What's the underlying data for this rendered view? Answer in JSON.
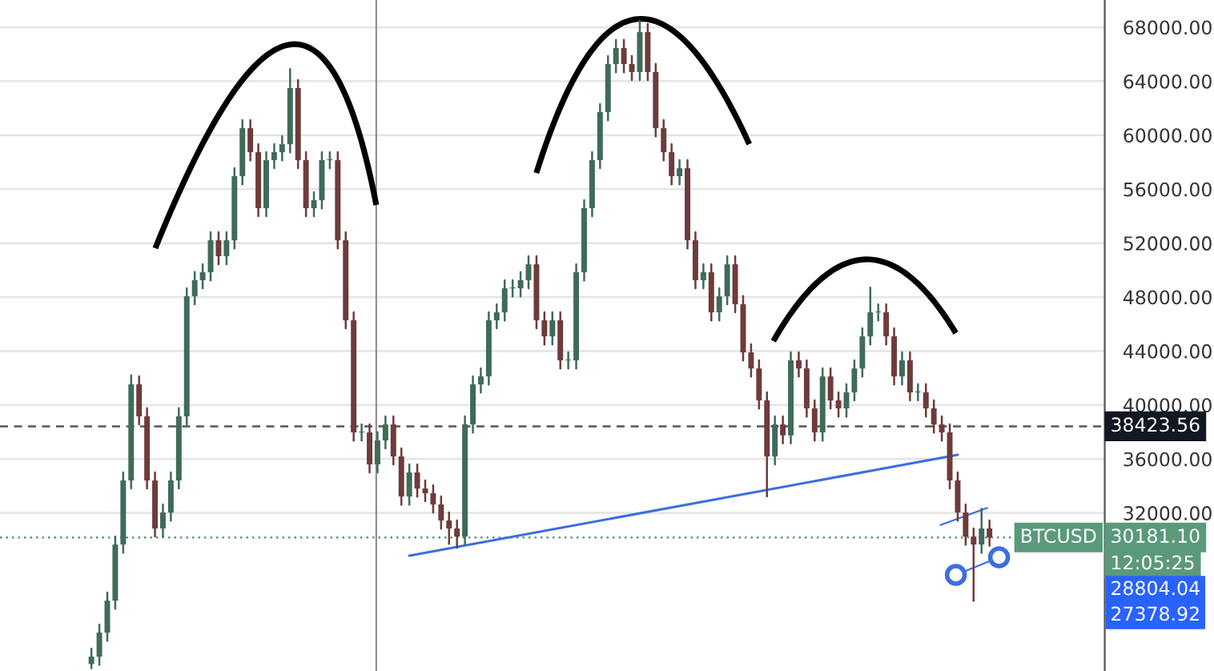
{
  "chart_data": {
    "type": "candlestick",
    "categories": [
      null,
      null,
      null,
      null,
      null,
      null,
      null,
      null,
      null,
      null,
      null,
      null,
      null,
      null,
      null,
      null,
      null,
      null,
      null,
      null,
      null,
      null,
      null,
      null,
      null,
      null,
      null,
      null,
      null,
      null,
      null,
      null,
      null,
      null,
      null,
      null,
      null,
      null,
      null,
      null,
      null,
      null,
      null,
      null,
      null,
      null,
      null,
      null,
      null,
      null,
      null,
      null,
      null,
      null,
      null,
      null,
      null,
      null,
      null,
      null,
      null,
      null,
      null,
      null,
      null,
      null,
      null,
      null,
      null,
      null,
      null,
      null,
      null,
      null,
      null,
      null,
      null,
      null,
      null,
      null,
      null,
      null,
      null,
      null,
      null,
      null,
      null,
      null,
      null,
      null,
      null,
      null,
      null,
      null,
      null,
      null,
      null,
      null,
      null,
      null,
      null,
      null,
      null,
      null,
      null,
      null,
      null,
      null,
      null,
      null,
      null,
      null,
      null,
      null,
      null,
      null,
      null,
      null,
      null,
      null,
      null,
      null,
      null,
      null,
      null,
      null,
      null,
      null,
      null,
      null,
      null,
      null,
      null,
      null,
      null,
      null,
      null,
      null,
      null
    ],
    "ohlc": [
      null,
      null,
      null,
      null,
      null,
      null,
      null,
      null,
      null,
      null,
      null,
      [
        20800,
        21950,
        20500,
        21350
      ],
      [
        21350,
        23730,
        20750,
        23130
      ],
      [
        23130,
        26100,
        22530,
        25500
      ],
      [
        25500,
        30260,
        24900,
        29660
      ],
      [
        29660,
        35010,
        29060,
        34410
      ],
      [
        34410,
        42200,
        33810,
        41530
      ],
      [
        41530,
        42130,
        38560,
        39160
      ],
      [
        39160,
        39760,
        33810,
        34410
      ],
      [
        34410,
        35010,
        30250,
        30850
      ],
      [
        30850,
        32630,
        30250,
        32030
      ],
      [
        32030,
        35010,
        31430,
        34410
      ],
      [
        34410,
        39760,
        33810,
        39160
      ],
      [
        39160,
        48660,
        38560,
        48060
      ],
      [
        48060,
        49850,
        47460,
        49250
      ],
      [
        49250,
        50440,
        48650,
        49840
      ],
      [
        49840,
        52810,
        49240,
        52210
      ],
      [
        52210,
        52810,
        50430,
        51030
      ],
      [
        51030,
        52810,
        50430,
        52210
      ],
      [
        52210,
        57560,
        51610,
        56960
      ],
      [
        56960,
        61120,
        56360,
        60520
      ],
      [
        60520,
        61120,
        58140,
        58740
      ],
      [
        58740,
        59340,
        53990,
        54590
      ],
      [
        54590,
        58750,
        53990,
        58150
      ],
      [
        58150,
        59340,
        57550,
        58740
      ],
      [
        58740,
        59930,
        58140,
        59330
      ],
      [
        59330,
        64900,
        58730,
        63490
      ],
      [
        63490,
        64090,
        57550,
        58150
      ],
      [
        58150,
        58750,
        53990,
        54590
      ],
      [
        54590,
        55780,
        53990,
        55180
      ],
      [
        55180,
        58750,
        54580,
        58150
      ],
      [
        58150,
        58750,
        57550,
        58150
      ],
      [
        58150,
        58750,
        51610,
        52210
      ],
      [
        52210,
        52810,
        45680,
        46280
      ],
      [
        46280,
        46880,
        37370,
        37970
      ],
      [
        37970,
        38570,
        37370,
        37970
      ],
      [
        37970,
        38570,
        35000,
        35600
      ],
      [
        35600,
        37980,
        35000,
        37380
      ],
      [
        37380,
        39160,
        36780,
        38560
      ],
      [
        38560,
        39160,
        35590,
        36190
      ],
      [
        36190,
        36790,
        32620,
        33220
      ],
      [
        33220,
        35600,
        32620,
        35000
      ],
      [
        35000,
        35600,
        33210,
        33810
      ],
      [
        33810,
        34410,
        32860,
        33460
      ],
      [
        33460,
        34060,
        32030,
        32630
      ],
      [
        32630,
        33230,
        30840,
        31440
      ],
      [
        31440,
        32040,
        29700,
        30850
      ],
      [
        30850,
        31450,
        29420,
        30250
      ],
      [
        30250,
        39160,
        29650,
        38560
      ],
      [
        38560,
        42130,
        37960,
        41530
      ],
      [
        41530,
        42720,
        40930,
        42120
      ],
      [
        42120,
        46880,
        41520,
        46280
      ],
      [
        46280,
        47470,
        45680,
        46870
      ],
      [
        46870,
        49250,
        46270,
        48650
      ],
      [
        48650,
        49250,
        48050,
        48650
      ],
      [
        48650,
        49850,
        48050,
        49250
      ],
      [
        49250,
        51030,
        48650,
        50430
      ],
      [
        50430,
        51030,
        45680,
        46280
      ],
      [
        46280,
        46880,
        44490,
        45090
      ],
      [
        45090,
        46880,
        44490,
        46280
      ],
      [
        46280,
        46880,
        42710,
        43310
      ],
      [
        43310,
        43910,
        42710,
        43310
      ],
      [
        43310,
        50440,
        42710,
        49840
      ],
      [
        49840,
        55190,
        49240,
        54590
      ],
      [
        54590,
        58750,
        53990,
        58150
      ],
      [
        58150,
        62310,
        57550,
        61710
      ],
      [
        61710,
        65870,
        61110,
        65270
      ],
      [
        65270,
        67060,
        64670,
        66460
      ],
      [
        66460,
        67060,
        64670,
        65270
      ],
      [
        65270,
        65870,
        64080,
        64680
      ],
      [
        64680,
        68470,
        64080,
        67640
      ],
      [
        67640,
        68240,
        64080,
        64680
      ],
      [
        64680,
        65280,
        59920,
        60520
      ],
      [
        60520,
        61120,
        58140,
        58740
      ],
      [
        58740,
        59340,
        56360,
        56960
      ],
      [
        56960,
        58150,
        56360,
        57550
      ],
      [
        57550,
        58150,
        51610,
        52210
      ],
      [
        52210,
        52810,
        48650,
        49250
      ],
      [
        49250,
        50440,
        48650,
        49840
      ],
      [
        49840,
        50440,
        46270,
        46870
      ],
      [
        46870,
        48660,
        46270,
        48060
      ],
      [
        48060,
        51030,
        47460,
        50430
      ],
      [
        50430,
        51030,
        46870,
        47470
      ],
      [
        47470,
        48070,
        43300,
        43900
      ],
      [
        43900,
        44500,
        42110,
        42710
      ],
      [
        42710,
        43310,
        39740,
        40340
      ],
      [
        40340,
        40940,
        33220,
        36190
      ],
      [
        36190,
        39160,
        35590,
        38560
      ],
      [
        38560,
        39160,
        37150,
        37750
      ],
      [
        37750,
        43910,
        37150,
        43310
      ],
      [
        43310,
        43910,
        42110,
        42710
      ],
      [
        42710,
        43310,
        39150,
        39750
      ],
      [
        39750,
        40350,
        37370,
        37970
      ],
      [
        37970,
        42720,
        37370,
        42120
      ],
      [
        42120,
        42720,
        39740,
        40340
      ],
      [
        40340,
        40940,
        39150,
        39750
      ],
      [
        39750,
        41540,
        39150,
        40940
      ],
      [
        40940,
        43310,
        40340,
        42710
      ],
      [
        42710,
        45690,
        42110,
        45090
      ],
      [
        45090,
        48700,
        44490,
        46870
      ],
      [
        46870,
        47470,
        46270,
        46870
      ],
      [
        46870,
        47470,
        44490,
        45090
      ],
      [
        45090,
        45690,
        41520,
        42120
      ],
      [
        42120,
        43910,
        41520,
        43310
      ],
      [
        43310,
        43910,
        40340,
        40940
      ],
      [
        40940,
        41540,
        40340,
        40940
      ],
      [
        40940,
        41540,
        39150,
        39750
      ],
      [
        39750,
        40350,
        37960,
        38560
      ],
      [
        38560,
        39160,
        37370,
        37970
      ],
      [
        37970,
        38570,
        33810,
        34410
      ],
      [
        34410,
        35010,
        31430,
        32030
      ],
      [
        32030,
        32630,
        29650,
        30250
      ],
      [
        30250,
        30850,
        25500,
        29660
      ],
      [
        29660,
        32300,
        29060,
        30850
      ],
      [
        30850,
        31450,
        29580,
        30181.1
      ],
      null,
      null,
      null,
      null,
      null,
      null,
      null,
      null,
      null,
      null,
      null,
      null,
      null,
      null
    ],
    "colors": [
      null,
      null,
      null,
      null,
      null,
      null,
      null,
      null,
      null,
      null,
      null,
      "#3f6b58",
      "#3f6b58",
      "#3f6b58",
      "#3f6b58",
      "#3f6b58",
      "#3f6b58",
      "#6e3b3b",
      "#6e3b3b",
      "#6e3b3b",
      "#3f6b58",
      "#3f6b58",
      "#3f6b58",
      "#3f6b58",
      "#3f6b58",
      "#3f6b58",
      "#3f6b58",
      "#6e3b3b",
      "#3f6b58",
      "#3f6b58",
      "#3f6b58",
      "#6e3b3b",
      "#6e3b3b",
      "#3f6b58",
      "#3f6b58",
      "#3f6b58",
      "#3f6b58",
      "#6e3b3b",
      "#6e3b3b",
      "#3f6b58",
      "#3f6b58",
      "#3f6b58",
      "#6e3b3b",
      "#6e3b3b",
      "#6e3b3b",
      "#3f6b58",
      "#6e3b3b",
      "#3f6b58",
      "#3f6b58",
      "#6e3b3b",
      "#6e3b3b",
      "#3f6b58",
      "#6e3b3b",
      "#6e3b3b",
      "#6e3b3b",
      "#6e3b3b",
      "#6e3b3b",
      "#6e3b3b",
      "#3f6b58",
      "#3f6b58",
      "#3f6b58",
      "#3f6b58",
      "#3f6b58",
      "#3f6b58",
      "#3f6b58",
      "#3f6b58",
      "#3f6b58",
      "#6e3b3b",
      "#6e3b3b",
      "#3f6b58",
      "#6e3b3b",
      "#3f6b58",
      "#3f6b58",
      "#3f6b58",
      "#3f6b58",
      "#3f6b58",
      "#3f6b58",
      "#3f6b58",
      "#6e3b3b",
      "#6e3b3b",
      "#3f6b58",
      "#6e3b3b",
      "#6e3b3b",
      "#6e3b3b",
      "#6e3b3b",
      "#3f6b58",
      "#6e3b3b",
      "#6e3b3b",
      "#3f6b58",
      "#6e3b3b",
      "#3f6b58",
      "#3f6b58",
      "#6e3b3b",
      "#6e3b3b",
      "#6e3b3b",
      "#6e3b3b",
      "#6e3b3b",
      "#3f6b58",
      "#6e3b3b",
      "#3f6b58",
      "#6e3b3b",
      "#6e3b3b",
      "#6e3b3b",
      "#3f6b58",
      "#6e3b3b",
      "#6e3b3b",
      "#3f6b58",
      "#3f6b58",
      "#3f6b58",
      "#3f6b58",
      "#3f6b58",
      "#6e3b3b",
      "#6e3b3b",
      "#3f6b58",
      "#6e3b3b",
      "#3f6b58",
      "#6e3b3b",
      "#6e3b3b",
      "#6e3b3b",
      "#6e3b3b",
      "#6e3b3b",
      "#6e3b3b",
      "#6e3b3b",
      "#3f6b58",
      "#6e3b3b",
      null,
      null,
      null,
      null,
      null,
      null,
      null,
      null,
      null,
      null,
      null,
      null,
      null,
      null
    ],
    "series": [
      {
        "type": "line",
        "color": "#3d6ee0",
        "values": [
          null,
          null,
          null,
          null,
          null,
          null,
          null,
          null,
          null,
          null,
          null,
          null,
          null,
          null,
          null,
          null,
          null,
          null,
          null,
          null,
          null,
          null,
          null,
          null,
          null,
          null,
          null,
          null,
          null,
          null,
          null,
          null,
          null,
          null,
          null,
          null,
          null,
          null,
          null,
          null,
          null,
          null,
          null,
          null,
          null,
          null,
          null,
          null,
          null,
          null,
          null,
          28830,
          null,
          null,
          null,
          null,
          null,
          null,
          null,
          null,
          null,
          null,
          null,
          null,
          null,
          null,
          null,
          null,
          null,
          null,
          null,
          null,
          null,
          null,
          null,
          null,
          null,
          null,
          null,
          null,
          null,
          null,
          null,
          null,
          null,
          null,
          null,
          null,
          null,
          null,
          null,
          null,
          null,
          null,
          null,
          null,
          null,
          null,
          null,
          null,
          null,
          null,
          null,
          null,
          null,
          null,
          null,
          null,
          null,
          null,
          null,
          null,
          null,
          null,
          null,
          null,
          null,
          null,
          null,
          null,
          36310,
          null,
          null,
          null,
          null,
          null,
          null,
          null,
          null,
          null,
          null,
          null,
          null,
          null,
          null,
          null,
          null,
          null,
          null
        ]
      }
    ],
    "ylim": [
      20285,
      70020
    ],
    "yticks": [
      {
        "value": 32000,
        "label": "32000.00"
      },
      {
        "value": 36000,
        "label": "36000.00"
      },
      {
        "value": 40000,
        "label": "40000.00"
      },
      {
        "value": 44000,
        "label": "44000.00"
      },
      {
        "value": 48000,
        "label": "48000.00"
      },
      {
        "value": 52000,
        "label": "52000.00"
      },
      {
        "value": 56000,
        "label": "56000.00"
      },
      {
        "value": 60000,
        "label": "60000.00"
      },
      {
        "value": 64000,
        "label": "64000.00"
      },
      {
        "value": 68000,
        "label": "68000.00"
      }
    ],
    "tick_labels": "y",
    "grid": "y",
    "ref_lines": [
      {
        "axis": "y",
        "value": 38423.56,
        "label": "38423.56",
        "color": "#555555",
        "line_style": "dashed"
      },
      {
        "axis": "y",
        "value": 30181.1,
        "label": "30181.10",
        "color": "#5a9a7a",
        "line_style": "dotted"
      }
    ],
    "annotations": [
      "BTCUSD",
      "12:05:25",
      "28804.04",
      "27378.92"
    ]
  }
}
